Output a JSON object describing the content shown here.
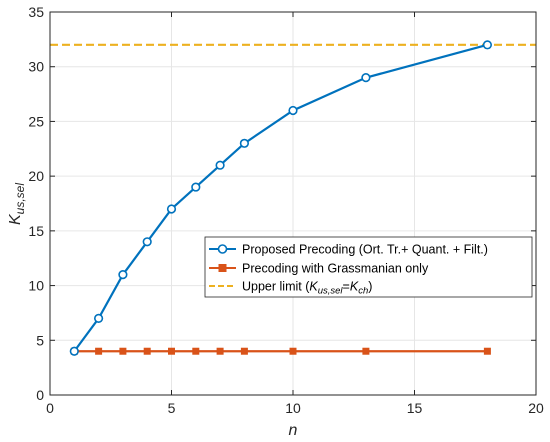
{
  "chart_data": {
    "type": "line",
    "xlabel": "n",
    "ylabel": {
      "main": "K",
      "sub": "us,sel"
    },
    "xlim": [
      0,
      20
    ],
    "ylim": [
      0,
      35
    ],
    "x_ticks": [
      0,
      5,
      10,
      15,
      20
    ],
    "y_ticks": [
      0,
      5,
      10,
      15,
      20,
      25,
      30,
      35
    ],
    "grid": true,
    "legend_position": "center-right",
    "series": [
      {
        "name": "Proposed Precoding (Ort. Tr.+ Quant. + Filt.)",
        "color": "#0072BD",
        "marker": "circle",
        "line_style": "solid",
        "x": [
          1,
          2,
          3,
          4,
          5,
          6,
          7,
          8,
          10,
          13,
          18
        ],
        "y": [
          4,
          7,
          11,
          14,
          17,
          19,
          21,
          23,
          26,
          29,
          32
        ]
      },
      {
        "name": "Precoding with Grassmanian only",
        "color": "#D95319",
        "marker": "square",
        "line_style": "solid",
        "x": [
          1,
          2,
          3,
          4,
          5,
          6,
          7,
          8,
          10,
          13,
          18
        ],
        "y": [
          4,
          4,
          4,
          4,
          4,
          4,
          4,
          4,
          4,
          4,
          4
        ]
      },
      {
        "name": "Upper limit",
        "name_parts": {
          "prefix": "Upper limit (",
          "k1": "K",
          "sub1": "us,sel",
          "eq": "=",
          "k2": "K",
          "sub2": "ch",
          "suffix": ")"
        },
        "color": "#EDB120",
        "marker": "none",
        "line_style": "dashed",
        "x": [
          0,
          20
        ],
        "y": [
          32,
          32
        ]
      }
    ]
  }
}
